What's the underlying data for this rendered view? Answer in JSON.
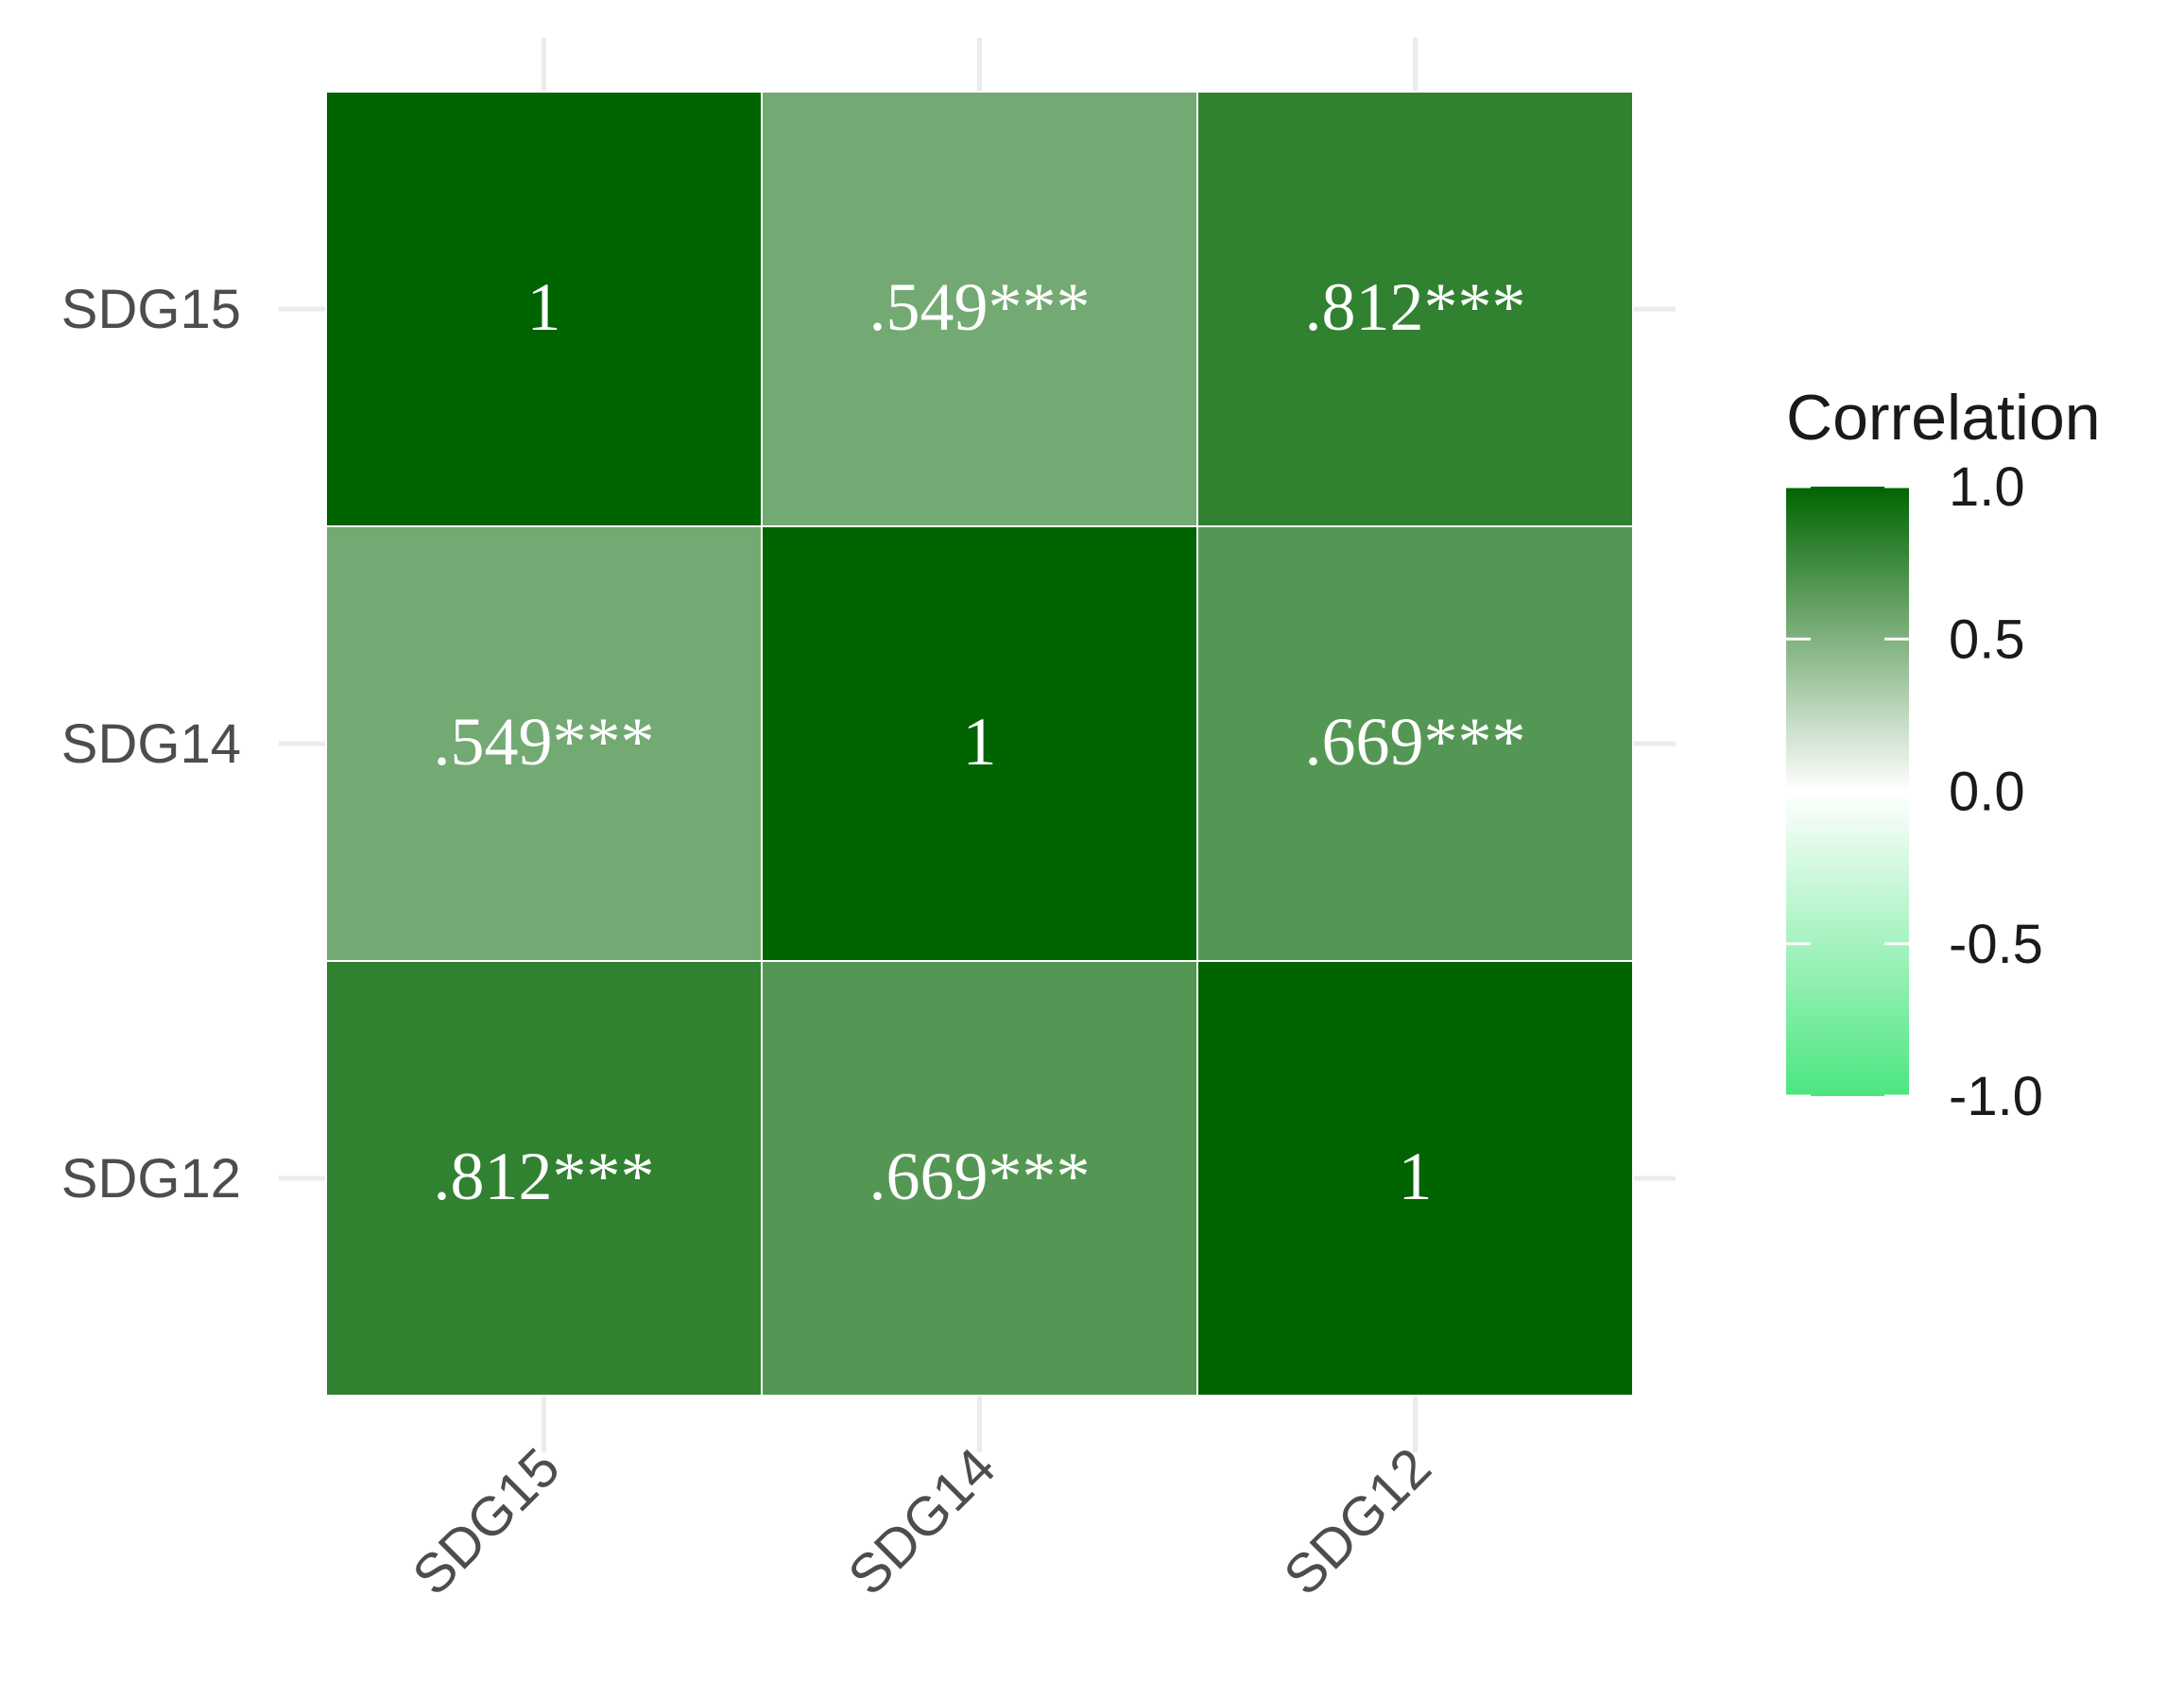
{
  "chart_data": {
    "type": "heatmap",
    "x_categories": [
      "SDG15",
      "SDG14",
      "SDG12"
    ],
    "y_categories": [
      "SDG15",
      "SDG14",
      "SDG12"
    ],
    "values": [
      [
        1,
        0.549,
        0.812
      ],
      [
        0.549,
        1,
        0.669
      ],
      [
        0.812,
        0.669,
        1
      ]
    ],
    "cell_labels": [
      [
        "1",
        ".549***",
        ".812***"
      ],
      [
        ".549***",
        "1",
        ".669***"
      ],
      [
        ".812***",
        ".669***",
        "1"
      ]
    ],
    "legend": {
      "title": "Correlation",
      "ticks": [
        "1.0",
        "0.5",
        "0.0",
        "-0.5",
        "-1.0"
      ],
      "tick_values": [
        1.0,
        0.5,
        0.0,
        -0.5,
        -1.0
      ],
      "range": [
        -1,
        1
      ],
      "placement": "right"
    },
    "colors": {
      "high": "#006400",
      "mid": "#ffffff",
      "low": "#4ce680",
      "grid": "#ebebeb",
      "cell_border": "#ffffff"
    },
    "grid": true
  }
}
